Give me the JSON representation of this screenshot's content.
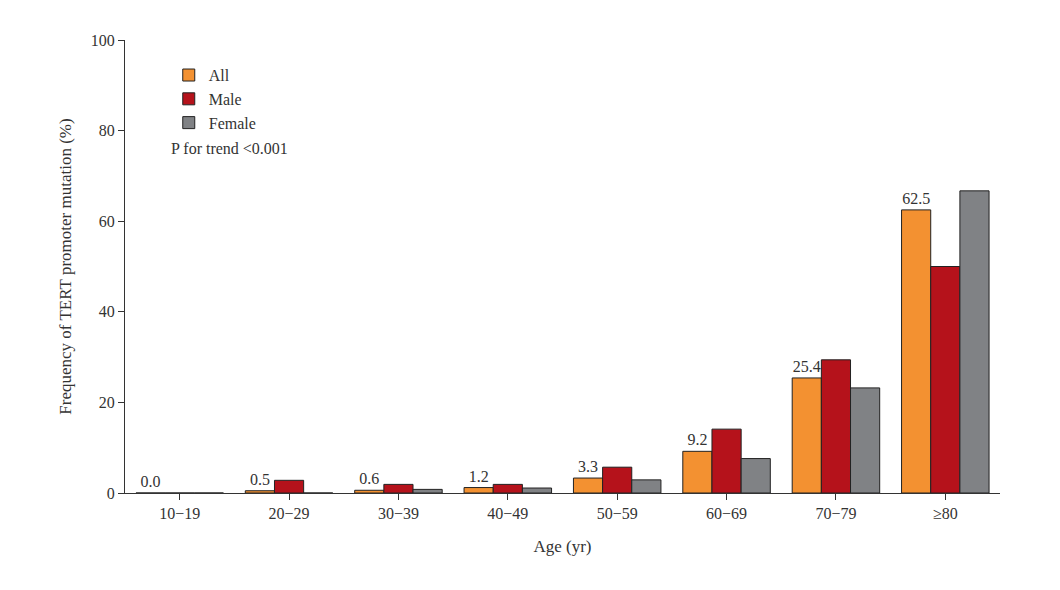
{
  "chart_data": {
    "type": "bar",
    "x_label": "Age (yr)",
    "y_label": "Frequency of TERT promoter mutation (%)",
    "annotation": "P for trend <0.001",
    "categories": [
      "10−19",
      "20−29",
      "30−39",
      "40−49",
      "50−59",
      "60−69",
      "70−79",
      "≥80"
    ],
    "series": [
      {
        "name": "All",
        "color": "#f39131",
        "values": [
          0.0,
          0.5,
          0.6,
          1.2,
          3.3,
          9.2,
          25.4,
          62.5
        ],
        "value_labels": [
          "0.0",
          "0.5",
          "0.6",
          "1.2",
          "3.3",
          "9.2",
          "25.4",
          "62.5"
        ]
      },
      {
        "name": "Male",
        "color": "#b5121b",
        "values": [
          0.0,
          2.8,
          1.9,
          1.9,
          5.7,
          14.1,
          29.4,
          50.0
        ]
      },
      {
        "name": "Female",
        "color": "#808285",
        "values": [
          0.0,
          0.0,
          0.8,
          1.1,
          2.9,
          7.6,
          23.2,
          66.7
        ]
      }
    ],
    "ylim": [
      0,
      100
    ],
    "yticks": [
      0,
      20,
      40,
      60,
      80,
      100
    ],
    "grid": false,
    "legend": "upper left"
  }
}
